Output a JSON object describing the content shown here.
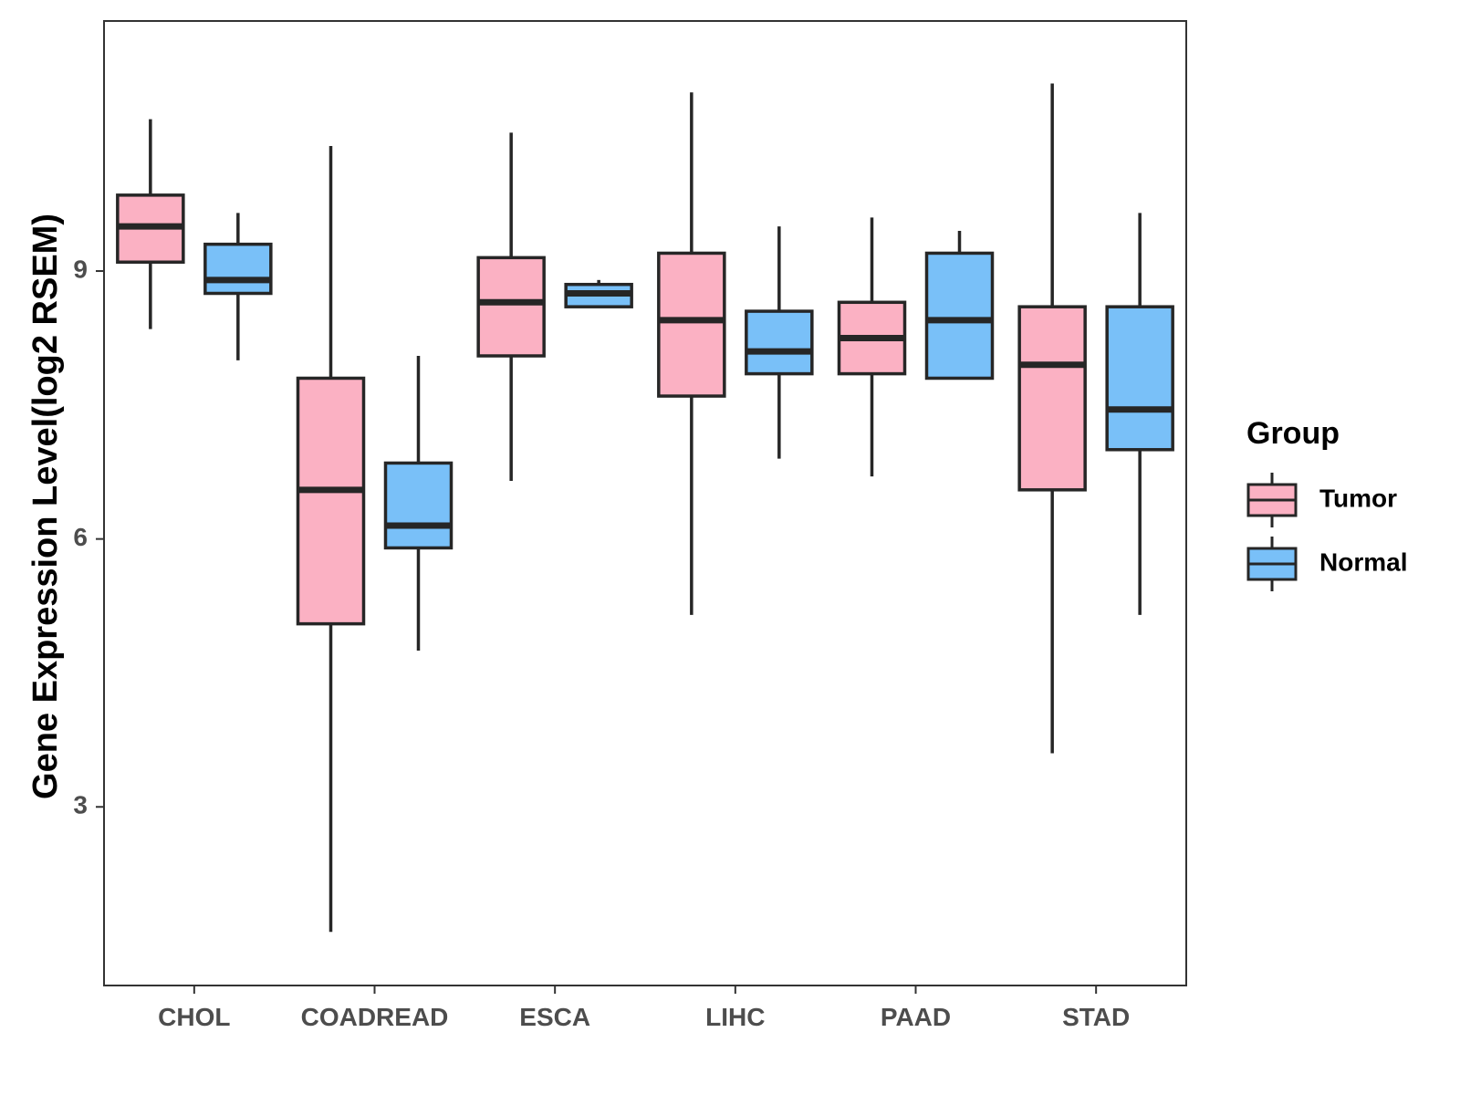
{
  "chart_data": {
    "type": "boxplot",
    "title": "",
    "xlabel": "",
    "ylabel": "Gene Expression Level(log2 RSEM)",
    "ylim": [
      1.0,
      11.8
    ],
    "yticks": [
      3,
      6,
      9
    ],
    "ytick_labels": [
      "3",
      "6",
      "9"
    ],
    "categories": [
      "CHOL",
      "COADREAD",
      "ESCA",
      "LIHC",
      "PAAD",
      "STAD"
    ],
    "legend": {
      "title": "Group",
      "position": "right"
    },
    "series": [
      {
        "name": "Tumor",
        "color": "#FBB1C3",
        "boxes": [
          {
            "category": "CHOL",
            "min": 8.35,
            "q1": 9.1,
            "median": 9.5,
            "q3": 9.85,
            "max": 10.7
          },
          {
            "category": "COADREAD",
            "min": 1.6,
            "q1": 5.05,
            "median": 6.55,
            "q3": 7.8,
            "max": 10.4
          },
          {
            "category": "ESCA",
            "min": 6.65,
            "q1": 8.05,
            "median": 8.65,
            "q3": 9.15,
            "max": 10.55
          },
          {
            "category": "LIHC",
            "min": 5.15,
            "q1": 7.6,
            "median": 8.45,
            "q3": 9.2,
            "max": 11.0
          },
          {
            "category": "PAAD",
            "min": 6.7,
            "q1": 7.85,
            "median": 8.25,
            "q3": 8.65,
            "max": 9.6
          },
          {
            "category": "STAD",
            "min": 3.6,
            "q1": 6.55,
            "median": 7.95,
            "q3": 8.6,
            "max": 11.1
          }
        ]
      },
      {
        "name": "Normal",
        "color": "#79C0F8",
        "boxes": [
          {
            "category": "CHOL",
            "min": 8.0,
            "q1": 8.75,
            "median": 8.9,
            "q3": 9.3,
            "max": 9.65
          },
          {
            "category": "COADREAD",
            "min": 4.75,
            "q1": 5.9,
            "median": 6.15,
            "q3": 6.85,
            "max": 8.05
          },
          {
            "category": "ESCA",
            "min": 8.6,
            "q1": 8.6,
            "median": 8.75,
            "q3": 8.85,
            "max": 8.9
          },
          {
            "category": "LIHC",
            "min": 6.9,
            "q1": 7.85,
            "median": 8.1,
            "q3": 8.55,
            "max": 9.5
          },
          {
            "category": "PAAD",
            "min": 7.8,
            "q1": 7.8,
            "median": 8.45,
            "q3": 9.2,
            "max": 9.45
          },
          {
            "category": "STAD",
            "min": 5.15,
            "q1": 7.0,
            "median": 7.45,
            "q3": 8.6,
            "max": 9.65
          }
        ]
      }
    ],
    "grid": false,
    "box_stroke": "#262626"
  }
}
